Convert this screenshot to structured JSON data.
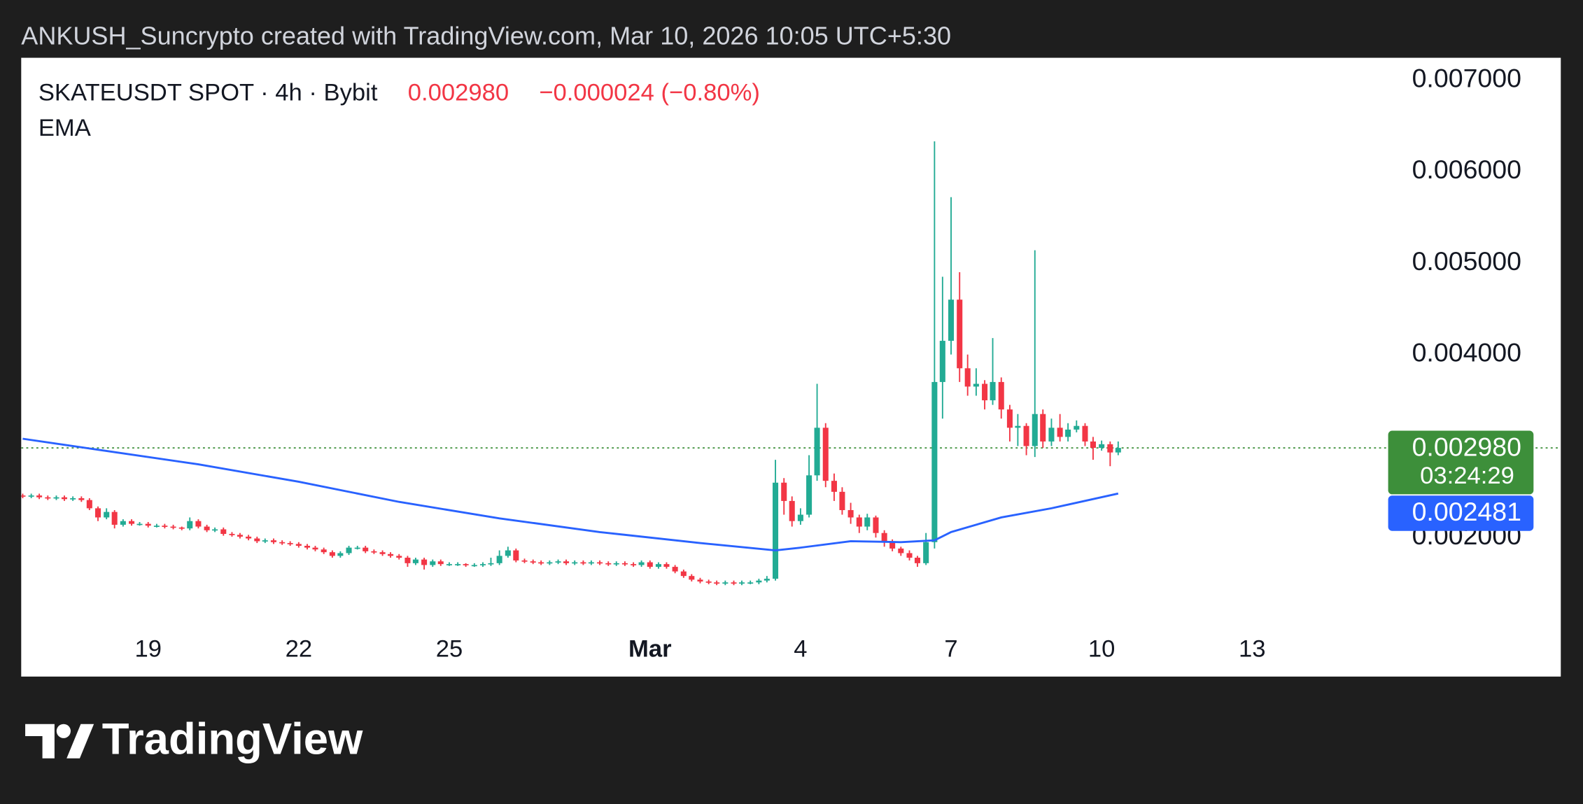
{
  "caption": "ANKUSH_Suncrypto created with TradingView.com, Mar 10, 2026 10:05 UTC+5:30",
  "footer": {
    "brand": "TradingView"
  },
  "chart_data": {
    "type": "candlestick",
    "legend": {
      "symbol": "SKATEUSDT SPOT · 4h · Bybit",
      "change": "−0.000024 (−0.80%)"
    },
    "up_color": "#22ab94",
    "down_color": "#f23645",
    "xlim": [
      16.47,
      47.15
    ],
    "xticks": [
      19,
      22,
      25,
      {
        "value": 29,
        "label": "Mar"
      },
      {
        "value": 32,
        "label": "4"
      },
      {
        "value": 35,
        "label": "7"
      },
      {
        "value": 38,
        "label": "10"
      },
      {
        "value": 41,
        "label": "13"
      }
    ],
    "ylim": [
      0.000481,
      0.007243
    ],
    "yticks": [
      {
        "value": 0.002,
        "label": "0.002000"
      },
      {
        "value": 0.004,
        "label": "0.004000"
      },
      {
        "value": 0.005,
        "label": "0.005000"
      },
      {
        "value": 0.006,
        "label": "0.006000"
      },
      {
        "value": 0.007,
        "label": "0.007000"
      }
    ],
    "grid": false,
    "x": [
      16.5,
      16.67,
      16.83,
      17,
      17.17,
      17.33,
      17.5,
      17.67,
      17.83,
      18,
      18.17,
      18.33,
      18.5,
      18.67,
      18.83,
      19,
      19.17,
      19.33,
      19.5,
      19.67,
      19.83,
      20,
      20.17,
      20.33,
      20.5,
      20.67,
      20.83,
      21,
      21.17,
      21.33,
      21.5,
      21.67,
      21.83,
      22,
      22.17,
      22.33,
      22.5,
      22.67,
      22.83,
      23,
      23.17,
      23.33,
      23.5,
      23.67,
      23.83,
      24,
      24.17,
      24.33,
      24.5,
      24.67,
      24.83,
      25,
      25.17,
      25.33,
      25.5,
      25.67,
      25.83,
      26,
      26.17,
      26.33,
      26.5,
      26.67,
      26.83,
      27,
      27.17,
      27.33,
      27.5,
      27.67,
      27.83,
      28,
      28.17,
      28.33,
      28.5,
      28.67,
      28.83,
      29,
      29.17,
      29.33,
      29.5,
      29.67,
      29.83,
      30,
      30.17,
      30.33,
      30.5,
      30.67,
      30.83,
      31,
      31.17,
      31.33,
      31.5,
      31.67,
      31.83,
      32,
      32.17,
      32.33,
      32.5,
      32.67,
      32.83,
      33,
      33.17,
      33.33,
      33.5,
      33.67,
      33.83,
      34,
      34.17,
      34.33,
      34.5,
      34.67,
      34.83,
      35,
      35.17,
      35.33,
      35.5,
      35.67,
      35.83,
      36,
      36.17,
      36.33,
      36.5,
      36.67,
      36.83,
      37,
      37.17,
      37.33,
      37.5,
      37.67,
      37.83,
      38,
      38.17,
      38.33
    ],
    "open": [
      0.00246,
      0.00245,
      0.00246,
      0.00244,
      0.00243,
      0.00244,
      0.00242,
      0.00243,
      0.00241,
      0.00232,
      0.00222,
      0.00228,
      0.00214,
      0.00218,
      0.00215,
      0.00215,
      0.00213,
      0.00213,
      0.00212,
      0.00211,
      0.0021,
      0.00218,
      0.00212,
      0.00208,
      0.00209,
      0.00204,
      0.00203,
      0.00201,
      0.00199,
      0.00196,
      0.00197,
      0.00195,
      0.00194,
      0.00193,
      0.00191,
      0.00189,
      0.00187,
      0.00184,
      0.0018,
      0.00183,
      0.00189,
      0.00189,
      0.00185,
      0.00184,
      0.00182,
      0.0018,
      0.00178,
      0.00172,
      0.00176,
      0.0017,
      0.00174,
      0.00171,
      0.00171,
      0.00171,
      0.0017,
      0.0017,
      0.00171,
      0.00172,
      0.0018,
      0.00186,
      0.00175,
      0.00174,
      0.00173,
      0.00172,
      0.00173,
      0.00174,
      0.00172,
      0.00173,
      0.00172,
      0.00173,
      0.00172,
      0.00171,
      0.00172,
      0.00171,
      0.0017,
      0.00173,
      0.00168,
      0.00171,
      0.00168,
      0.00163,
      0.00158,
      0.00154,
      0.00152,
      0.00151,
      0.0015,
      0.00151,
      0.0015,
      0.00151,
      0.00151,
      0.00153,
      0.00155,
      0.0026,
      0.0024,
      0.00218,
      0.00225,
      0.00268,
      0.0032,
      0.00262,
      0.0025,
      0.0023,
      0.00222,
      0.00212,
      0.00222,
      0.00205,
      0.00195,
      0.00188,
      0.00183,
      0.00178,
      0.00172,
      0.00195,
      0.0037,
      0.00415,
      0.0046,
      0.00385,
      0.00365,
      0.00368,
      0.0035,
      0.0037,
      0.0034,
      0.0032,
      0.00322,
      0.003,
      0.00335,
      0.00305,
      0.0032,
      0.0031,
      0.00318,
      0.00322,
      0.00305,
      0.00298,
      0.00302,
      0.00293
    ],
    "high": [
      0.00248,
      0.00248,
      0.00248,
      0.00246,
      0.00246,
      0.00246,
      0.00245,
      0.00245,
      0.00243,
      0.00234,
      0.00232,
      0.0023,
      0.0022,
      0.0022,
      0.00217,
      0.00217,
      0.00215,
      0.00215,
      0.00214,
      0.00212,
      0.00222,
      0.0022,
      0.00214,
      0.00211,
      0.00211,
      0.00206,
      0.00205,
      0.00203,
      0.00201,
      0.00199,
      0.00199,
      0.00197,
      0.00196,
      0.00195,
      0.00193,
      0.00191,
      0.00189,
      0.00186,
      0.00185,
      0.00191,
      0.00191,
      0.00191,
      0.00187,
      0.00186,
      0.00184,
      0.00182,
      0.0018,
      0.00178,
      0.00178,
      0.00176,
      0.00176,
      0.00173,
      0.00173,
      0.00172,
      0.00172,
      0.00173,
      0.00178,
      0.00186,
      0.0019,
      0.00188,
      0.00177,
      0.00176,
      0.00175,
      0.00175,
      0.00176,
      0.00176,
      0.00175,
      0.00175,
      0.00175,
      0.00175,
      0.00174,
      0.00174,
      0.00174,
      0.00173,
      0.00175,
      0.00175,
      0.00173,
      0.00173,
      0.0017,
      0.00165,
      0.0016,
      0.00156,
      0.00154,
      0.00153,
      0.00153,
      0.00153,
      0.00153,
      0.00153,
      0.00155,
      0.00158,
      0.00285,
      0.00265,
      0.00245,
      0.00232,
      0.0029,
      0.00368,
      0.00325,
      0.0027,
      0.00255,
      0.00238,
      0.00225,
      0.00226,
      0.00224,
      0.00208,
      0.00198,
      0.0019,
      0.00186,
      0.0018,
      0.00205,
      0.00633,
      0.00485,
      0.00572,
      0.0049,
      0.004,
      0.00385,
      0.00372,
      0.00418,
      0.00375,
      0.00345,
      0.00335,
      0.00325,
      0.00514,
      0.0034,
      0.0033,
      0.00335,
      0.00325,
      0.00328,
      0.00325,
      0.0031,
      0.00306,
      0.00305,
      0.00305
    ],
    "low": [
      0.00243,
      0.00243,
      0.00242,
      0.00241,
      0.00241,
      0.0024,
      0.0024,
      0.00239,
      0.0023,
      0.00218,
      0.0022,
      0.0021,
      0.00212,
      0.00213,
      0.00213,
      0.00211,
      0.00211,
      0.0021,
      0.00209,
      0.00208,
      0.00208,
      0.0021,
      0.00206,
      0.00206,
      0.00202,
      0.00201,
      0.00199,
      0.00197,
      0.00194,
      0.00194,
      0.00193,
      0.00192,
      0.00191,
      0.00189,
      0.00187,
      0.00185,
      0.00182,
      0.00178,
      0.00178,
      0.00181,
      0.00187,
      0.00183,
      0.00182,
      0.0018,
      0.00178,
      0.00176,
      0.00168,
      0.0017,
      0.00165,
      0.00168,
      0.00169,
      0.00169,
      0.00169,
      0.00168,
      0.00168,
      0.00168,
      0.00169,
      0.0017,
      0.00178,
      0.00173,
      0.00172,
      0.00171,
      0.0017,
      0.0017,
      0.00171,
      0.0017,
      0.0017,
      0.0017,
      0.0017,
      0.0017,
      0.00169,
      0.00169,
      0.00169,
      0.00168,
      0.00168,
      0.00166,
      0.00166,
      0.00166,
      0.00161,
      0.00156,
      0.00152,
      0.0015,
      0.00149,
      0.00148,
      0.00148,
      0.00148,
      0.00148,
      0.00149,
      0.00149,
      0.00151,
      0.00153,
      0.00225,
      0.00212,
      0.00214,
      0.00222,
      0.00262,
      0.00255,
      0.0024,
      0.00225,
      0.00215,
      0.00205,
      0.00208,
      0.002,
      0.0019,
      0.00185,
      0.0018,
      0.00175,
      0.00168,
      0.0017,
      0.00188,
      0.0033,
      0.004,
      0.0037,
      0.00355,
      0.00355,
      0.0034,
      0.00345,
      0.0033,
      0.00305,
      0.003,
      0.0029,
      0.00288,
      0.00298,
      0.003,
      0.00305,
      0.00305,
      0.00315,
      0.003,
      0.00285,
      0.00295,
      0.00278,
      0.0029
    ],
    "close": [
      0.00245,
      0.00246,
      0.00244,
      0.00243,
      0.00244,
      0.00242,
      0.00243,
      0.00241,
      0.00232,
      0.00222,
      0.00228,
      0.00214,
      0.00218,
      0.00215,
      0.00215,
      0.00213,
      0.00213,
      0.00212,
      0.00211,
      0.0021,
      0.00218,
      0.00212,
      0.00208,
      0.00209,
      0.00204,
      0.00203,
      0.00201,
      0.00199,
      0.00196,
      0.00197,
      0.00195,
      0.00194,
      0.00193,
      0.00191,
      0.00189,
      0.00187,
      0.00184,
      0.0018,
      0.00183,
      0.00189,
      0.00189,
      0.00185,
      0.00184,
      0.00182,
      0.0018,
      0.00178,
      0.00172,
      0.00176,
      0.0017,
      0.00174,
      0.00171,
      0.00171,
      0.00171,
      0.0017,
      0.0017,
      0.00171,
      0.00172,
      0.0018,
      0.00186,
      0.00175,
      0.00174,
      0.00173,
      0.00172,
      0.00173,
      0.00174,
      0.00172,
      0.00173,
      0.00172,
      0.00173,
      0.00172,
      0.00171,
      0.00172,
      0.00171,
      0.0017,
      0.00173,
      0.00168,
      0.00171,
      0.00168,
      0.00163,
      0.00158,
      0.00154,
      0.00152,
      0.00151,
      0.0015,
      0.00151,
      0.0015,
      0.00151,
      0.00151,
      0.00153,
      0.00155,
      0.0026,
      0.0024,
      0.00218,
      0.00225,
      0.00268,
      0.0032,
      0.00262,
      0.0025,
      0.0023,
      0.00222,
      0.00212,
      0.00222,
      0.00205,
      0.00195,
      0.00188,
      0.00183,
      0.00178,
      0.00172,
      0.00195,
      0.0037,
      0.00415,
      0.0046,
      0.00385,
      0.00365,
      0.00368,
      0.0035,
      0.0037,
      0.0034,
      0.0032,
      0.00322,
      0.003,
      0.00335,
      0.00305,
      0.0032,
      0.0031,
      0.00318,
      0.00322,
      0.00305,
      0.00298,
      0.00302,
      0.00293,
      0.00298
    ],
    "ema": {
      "name": "EMA",
      "color": "#2962ff",
      "x": [
        16.5,
        18,
        20,
        22,
        24,
        26,
        28,
        30,
        31.5,
        32,
        33,
        34,
        34.67,
        35,
        36,
        37,
        38.33
      ],
      "values": [
        0.00308,
        0.00296,
        0.0028,
        0.00261,
        0.00239,
        0.00221,
        0.00206,
        0.00194,
        0.00186,
        0.00189,
        0.00196,
        0.00195,
        0.00197,
        0.00206,
        0.00222,
        0.00232,
        0.002481
      ]
    },
    "price_label": {
      "value": 0.00298,
      "label": "0.002980",
      "countdown": "03:24:29",
      "color": "#3d8f3a"
    },
    "ema_label": {
      "value": 0.002481,
      "label": "0.002481",
      "color": "#2962ff"
    }
  }
}
